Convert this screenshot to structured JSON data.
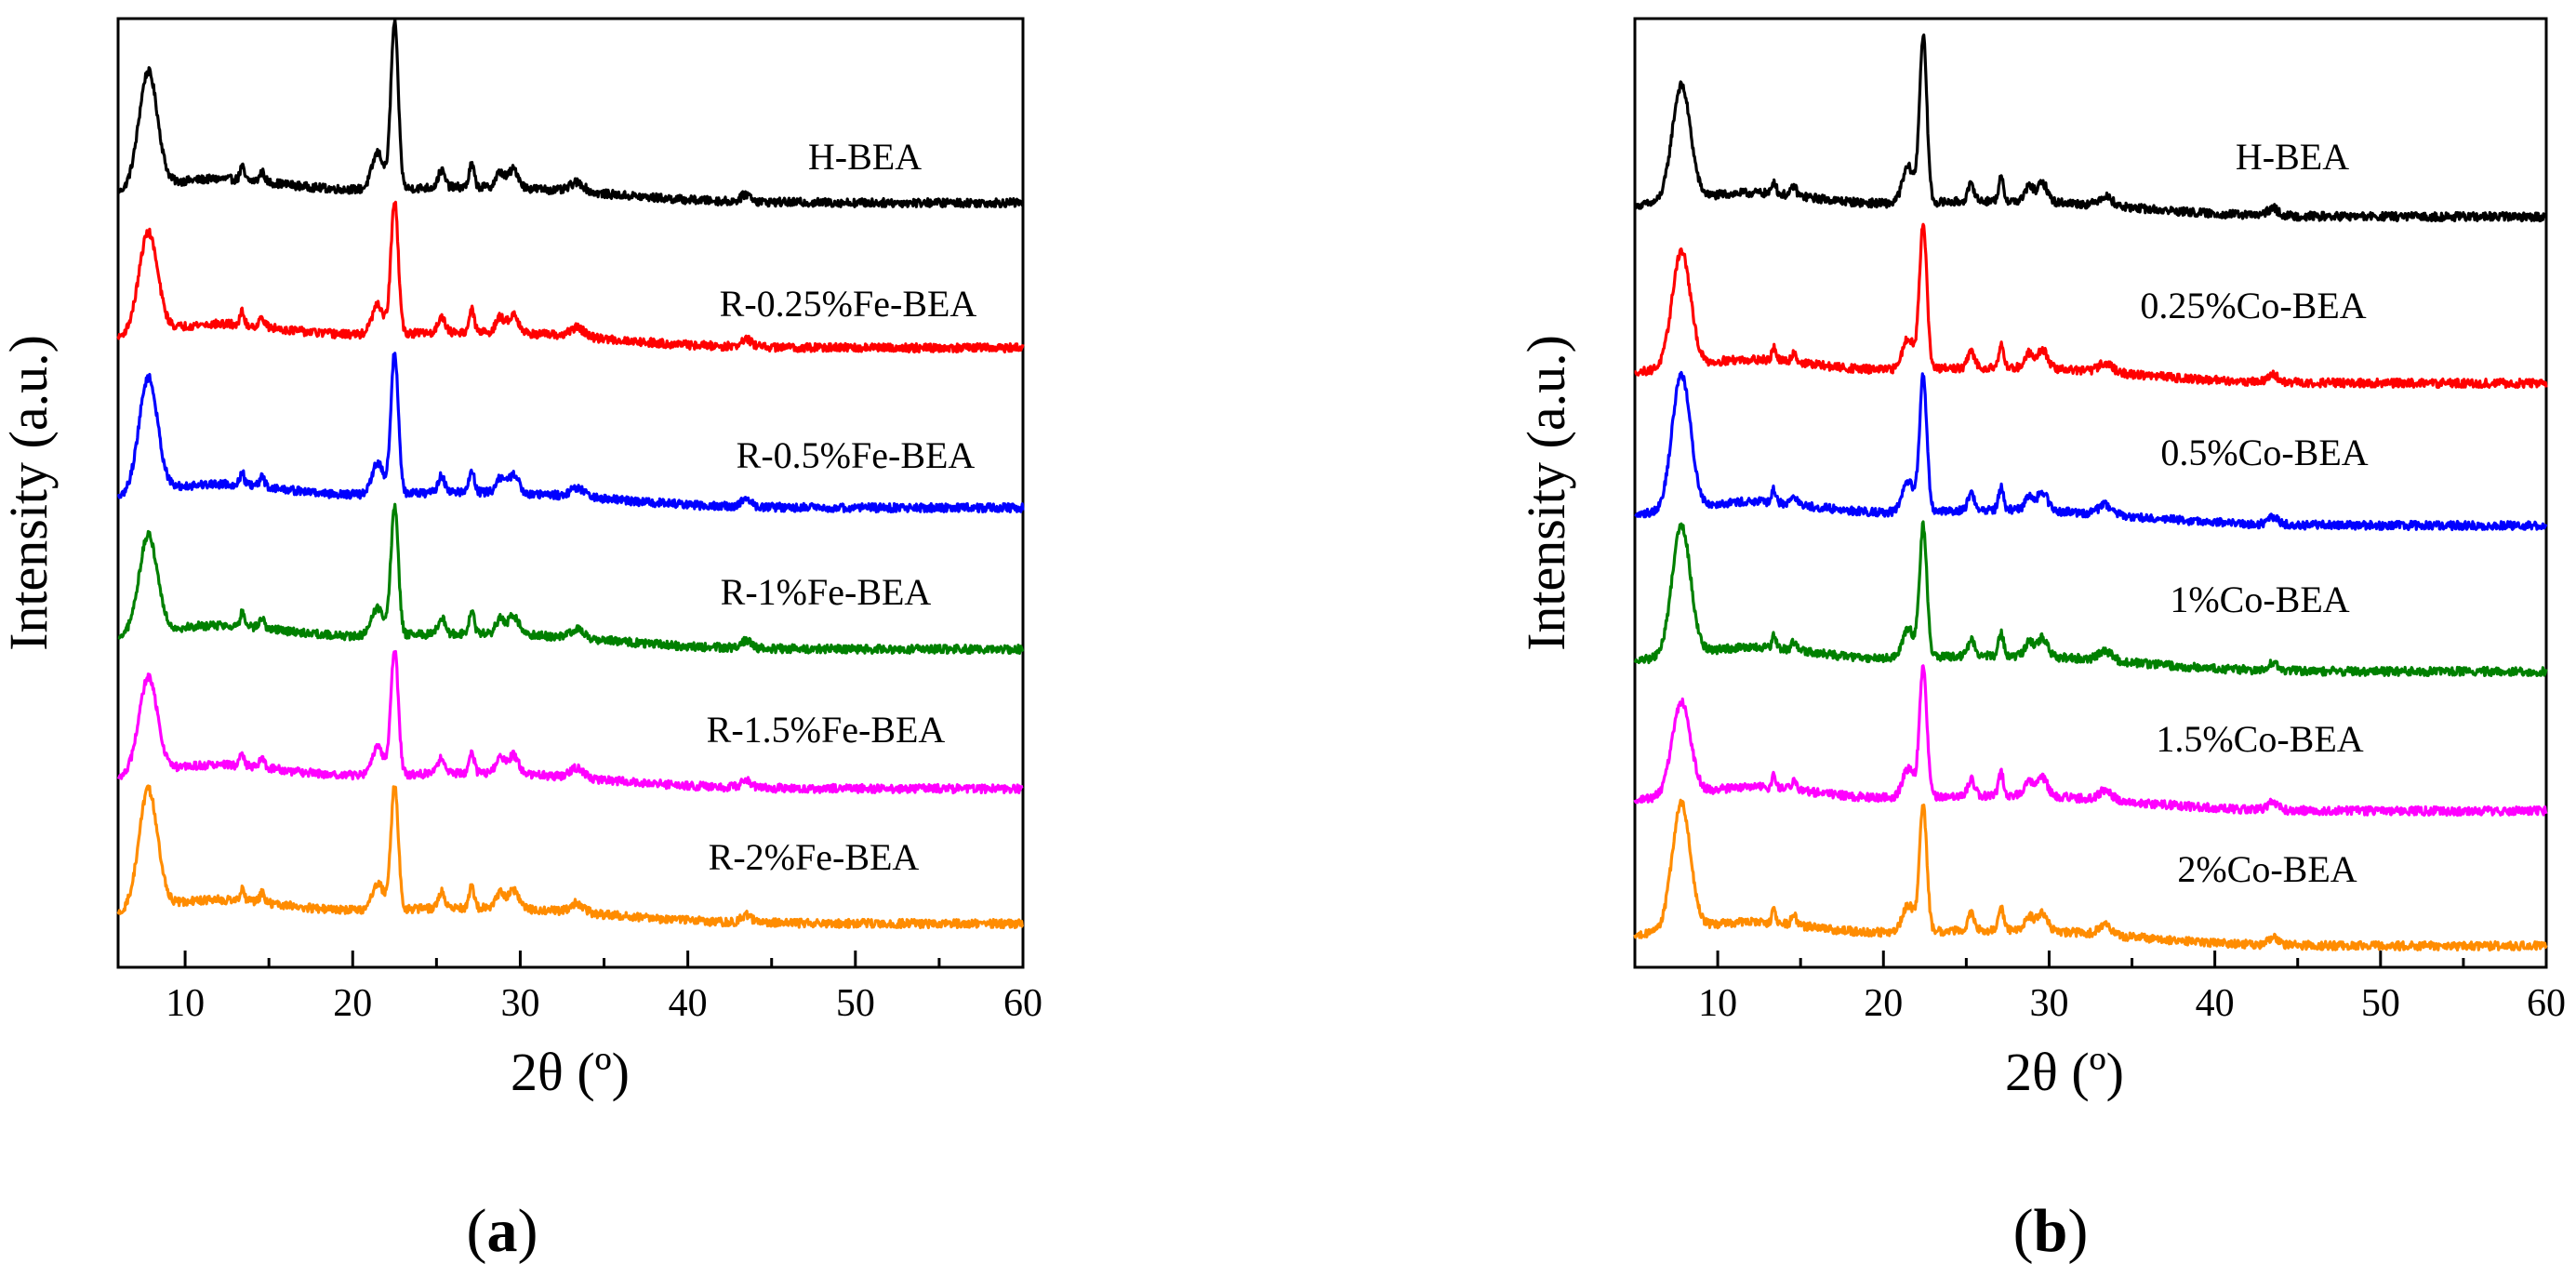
{
  "chart_data": [
    {
      "id": "a",
      "type": "line",
      "panel_label": "a",
      "xlabel": "2θ (º)",
      "ylabel": "Intensity (a.u.)",
      "xlim": [
        6,
        60
      ],
      "xticks": [
        10,
        20,
        30,
        40,
        50,
        60
      ],
      "yticks_shown": false,
      "peaks_2theta": [
        7.8,
        13.4,
        14.6,
        21.4,
        22.5,
        25.3,
        27.1,
        28.8,
        29.6,
        33.4,
        43.5
      ],
      "series": [
        {
          "name": "H-BEA",
          "color": "#000000",
          "baseline": 2.0,
          "peak_8": 0.95,
          "peak_22": 1.45
        },
        {
          "name": "R-0.25%Fe-BEA",
          "color": "#ff0000",
          "baseline": 1.4,
          "peak_8": 0.82,
          "peak_22": 1.25
        },
        {
          "name": "R-0.5%Fe-BEA",
          "color": "#0000ff",
          "baseline": 1.1,
          "peak_8": 0.95,
          "peak_22": 1.2
        },
        {
          "name": "R-1%Fe-BEA",
          "color": "#008000",
          "baseline": 0.8,
          "peak_8": 0.85,
          "peak_22": 1.1
        },
        {
          "name": "R-1.5%Fe-BEA",
          "color": "#ff00ff",
          "baseline": 0.5,
          "peak_8": 0.88,
          "peak_22": 1.15
        },
        {
          "name": "R-2%Fe-BEA",
          "color": "#ff8c00",
          "baseline": 0.2,
          "peak_8": 0.98,
          "peak_22": 1.15
        }
      ]
    },
    {
      "id": "b",
      "type": "line",
      "panel_label": "b",
      "xlabel": "2θ (º)",
      "ylabel": "Intensity (a.u.)",
      "xlim": [
        5,
        60
      ],
      "xticks": [
        10,
        20,
        30,
        40,
        50,
        60
      ],
      "yticks_shown": false,
      "peaks_2theta": [
        7.8,
        13.4,
        14.6,
        21.4,
        22.4,
        25.3,
        27.1,
        28.8,
        29.6,
        33.4,
        43.5
      ],
      "series": [
        {
          "name": "H-BEA",
          "color": "#000000",
          "baseline": 2.0,
          "peak_8": 0.95,
          "peak_22": 1.55
        },
        {
          "name": "0.25%Co-BEA",
          "color": "#ff0000",
          "baseline": 1.6,
          "peak_8": 1.05,
          "peak_22": 1.35
        },
        {
          "name": "0.5%Co-BEA",
          "color": "#0000ff",
          "baseline": 1.25,
          "peak_8": 1.3,
          "peak_22": 1.35
        },
        {
          "name": "1%Co-BEA",
          "color": "#008000",
          "baseline": 0.9,
          "peak_8": 1.2,
          "peak_22": 1.2
        },
        {
          "name": "1.5%Co-BEA",
          "color": "#ff00ff",
          "baseline": 0.55,
          "peak_8": 0.85,
          "peak_22": 1.25
        },
        {
          "name": "2%Co-BEA",
          "color": "#ff8c00",
          "baseline": 0.2,
          "peak_8": 1.15,
          "peak_22": 1.2
        }
      ]
    }
  ]
}
